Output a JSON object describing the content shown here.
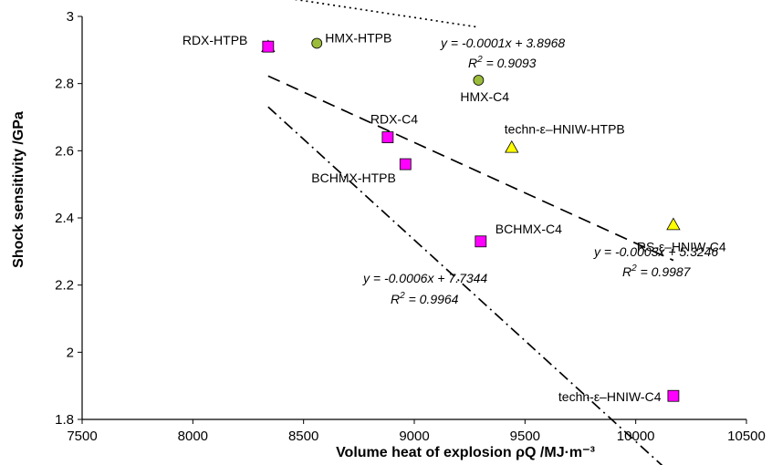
{
  "chart_data": {
    "type": "scatter",
    "xlabel": "Volume heat of explosion ρQ /MJ·m⁻³",
    "ylabel": "Shock sensitivity /GPa",
    "xlim": [
      7500,
      10500
    ],
    "ylim": [
      1.8,
      3.0
    ],
    "x_ticks": [
      "7500",
      "8000",
      "8500",
      "9000",
      "9500",
      "10000",
      "10500"
    ],
    "y_ticks": [
      "1.8",
      "2",
      "2.2",
      "2.4",
      "2.6",
      "2.8",
      "3"
    ],
    "grid": false,
    "series": [
      {
        "marker": "circle",
        "color": "#9bbb3b",
        "points": [
          {
            "x": 8560,
            "y": 2.92,
            "label": "HMX-HTPB"
          },
          {
            "x": 9290,
            "y": 2.81,
            "label": "HMX-C4"
          }
        ]
      },
      {
        "marker": "triangle",
        "color": "#ffff00",
        "points": [
          {
            "x": 8340,
            "y": 2.91,
            "label": ""
          },
          {
            "x": 9440,
            "y": 2.61,
            "label": "techn-ε–HNIW-HTPB"
          },
          {
            "x": 10170,
            "y": 2.38,
            "label": "RS-ε–HNIW-C4"
          }
        ]
      },
      {
        "marker": "square",
        "color": "#ff00ff",
        "points": [
          {
            "x": 8340,
            "y": 2.91,
            "label": "RDX-HTPB"
          },
          {
            "x": 8880,
            "y": 2.64,
            "label": "RDX-C4"
          },
          {
            "x": 8960,
            "y": 2.56,
            "label": "BCHMX-HTPB"
          },
          {
            "x": 9300,
            "y": 2.33,
            "label": "BCHMX-C4"
          },
          {
            "x": 10170,
            "y": 1.87,
            "label": "techn-ε–HNIW-C4"
          }
        ]
      }
    ],
    "trendlines": [
      {
        "style": "dotted",
        "x": [
          8340,
          9290
        ],
        "eq": "y = -0.0001x + 3.8968",
        "r2_value": "= 0.9093"
      },
      {
        "style": "dashed",
        "x": [
          8340,
          10170
        ],
        "eq": "y = -0.0003x + 5.3246",
        "r2_value": "= 0.9987"
      },
      {
        "style": "dashdot",
        "x": [
          8340,
          10170
        ],
        "eq": "y = -0.0006x + 7.7344",
        "r2_value": "= 0.9964"
      }
    ]
  }
}
